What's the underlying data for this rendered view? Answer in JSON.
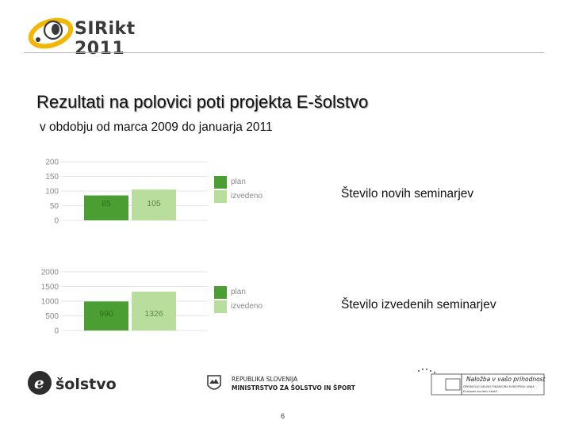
{
  "header": {
    "logo_text": "SIRikt 2011"
  },
  "slide": {
    "title": "Rezultati na polovici poti projekta E-šolstvo",
    "subtitle": "v obdobju od marca 2009 do januarja 2011",
    "page_number": "6"
  },
  "colors": {
    "plan": "#4a9e32",
    "izvedeno": "#b9dd9c",
    "bar_label_plan": "#2f6e1e",
    "bar_label_izvedeno": "#5a8a43",
    "axis_text": "#8a8a8a",
    "gridline": "#e6e6e6",
    "logo_yellow": "#f2b705"
  },
  "chart_data": [
    {
      "type": "bar",
      "caption": "Število novih seminarjev",
      "categories": [
        "plan",
        "izvedeno"
      ],
      "values": [
        85,
        105
      ],
      "data_labels": [
        "85",
        "105"
      ],
      "y_ticks": [
        "0",
        "50",
        "100",
        "150",
        "200"
      ],
      "ylim": [
        0,
        200
      ],
      "legend": [
        "plan",
        "izvedeno"
      ],
      "legend_position": "right",
      "grid": true
    },
    {
      "type": "bar",
      "caption": "Število izvedenih seminarjev",
      "categories": [
        "plan",
        "izvedeno"
      ],
      "values": [
        990,
        1326
      ],
      "data_labels": [
        "990",
        "1326"
      ],
      "y_ticks": [
        "0",
        "500",
        "1000",
        "1500",
        "2000"
      ],
      "ylim": [
        0,
        2000
      ],
      "legend": [
        "plan",
        "izvedeno"
      ],
      "legend_position": "right",
      "grid": true
    }
  ],
  "footer": {
    "esolstvo_logo_text": "šolstvo",
    "ministry_line1": "REPUBLIKA SLOVENIJA",
    "ministry_line2": "MINISTRSTVO ZA ŠOLSTVO IN ŠPORT",
    "eu_line1": "Naložba v vašo prihodnost",
    "eu_line2": "OPERACIJO DELNO FINANCIRA EVROPSKA UNIJA",
    "eu_line3": "Evropski socialni sklad"
  }
}
